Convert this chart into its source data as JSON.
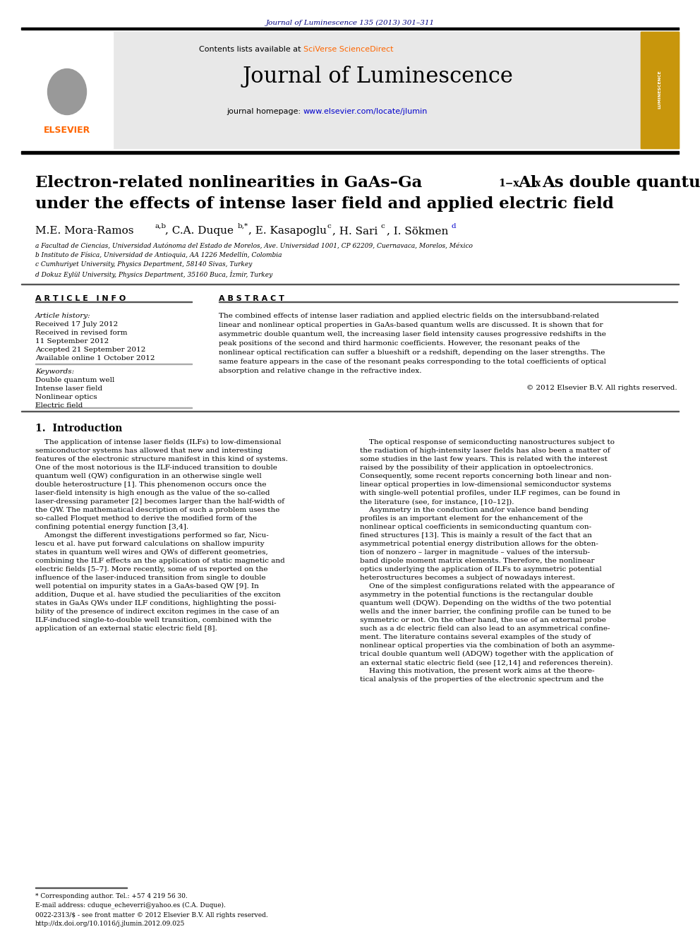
{
  "page_bg": "#ffffff",
  "top_journal_ref": "Journal of Luminescence 135 (2013) 301–311",
  "top_journal_ref_color": "#000080",
  "header_bg": "#e8e8e8",
  "journal_homepage_url": "www.elsevier.com/locate/jlumin",
  "journal_homepage_url_color": "#0000cc",
  "affil_a": "a Facultad de Ciencias, Universidad Autónoma del Estado de Morelos, Ave. Universidad 1001, CP 62209, Cuernavaca, Morelos, México",
  "affil_b": "b Instituto de Física, Universidad de Antioquia, AA 1226 Medellín, Colombia",
  "affil_c": "c Cumhuriyet University, Physics Department, 58140 Sivas, Turkey",
  "affil_d": "d Dokuz Eylül University, Physics Department, 35160 Buca, İzmir, Turkey",
  "article_info_header": "A R T I C L E   I N F O",
  "abstract_header": "A B S T R A C T",
  "article_history_label": "Article history:",
  "received_1": "Received 17 July 2012",
  "received_2": "Received in revised form",
  "received_2b": "11 September 2012",
  "accepted": "Accepted 21 September 2012",
  "available": "Available online 1 October 2012",
  "keywords_label": "Keywords:",
  "kw1": "Double quantum well",
  "kw2": "Intense laser field",
  "kw3": "Nonlinear optics",
  "kw4": "Electric field",
  "abstract_text": "The combined effects of intense laser radiation and applied electric fields on the intersubband-related\nlinear and nonlinear optical properties in GaAs-based quantum wells are discussed. It is shown that for\nasymmetric double quantum well, the increasing laser field intensity causes progressive redshifts in the\npeak positions of the second and third harmonic coefficients. However, the resonant peaks of the\nnonlinear optical rectification can suffer a blueshift or a redshift, depending on the laser strengths. The\nsame feature appears in the case of the resonant peaks corresponding to the total coefficients of optical\nabsorption and relative change in the refractive index.",
  "copyright": "© 2012 Elsevier B.V. All rights reserved.",
  "intro_header": "1.  Introduction",
  "intro_col1": "    The application of intense laser fields (ILFs) to low-dimensional\nsemiconductor systems has allowed that new and interesting\nfeatures of the electronic structure manifest in this kind of systems.\nOne of the most notorious is the ILF-induced transition to double\nquantum well (QW) configuration in an otherwise single well\ndouble heterostructure [1]. This phenomenon occurs once the\nlaser-field intensity is high enough as the value of the so-called\nlaser-dressing parameter [2] becomes larger than the half-width of\nthe QW. The mathematical description of such a problem uses the\nso-called Floquet method to derive the modified form of the\nconfining potential energy function [3,4].\n    Amongst the different investigations performed so far, Nicu-\nlescu et al. have put forward calculations on shallow impurity\nstates in quantum well wires and QWs of different geometries,\ncombining the ILF effects an the application of static magnetic and\nelectric fields [5–7]. More recently, some of us reported on the\ninfluence of the laser-induced transition from single to double\nwell potential on impurity states in a GaAs-based QW [9]. In\naddition, Duque et al. have studied the peculiarities of the exciton\nstates in GaAs QWs under ILF conditions, highlighting the possi-\nbility of the presence of indirect exciton regimes in the case of an\nILF-induced single-to-double well transition, combined with the\napplication of an external static electric field [8].",
  "intro_col2": "    The optical response of semiconducting nanostructures subject to\nthe radiation of high-intensity laser fields has also been a matter of\nsome studies in the last few years. This is related with the interest\nraised by the possibility of their application in optoelectronics.\nConsequently, some recent reports concerning both linear and non-\nlinear optical properties in low-dimensional semiconductor systems\nwith single-well potential profiles, under ILF regimes, can be found in\nthe literature (see, for instance, [10–12]).\n    Asymmetry in the conduction and/or valence band bending\nprofiles is an important element for the enhancement of the\nnonlinear optical coefficients in semiconducting quantum con-\nfined structures [13]. This is mainly a result of the fact that an\nasymmetrical potential energy distribution allows for the obten-\ntion of nonzero – larger in magnitude – values of the intersub-\nband dipole moment matrix elements. Therefore, the nonlinear\noptics underlying the application of ILFs to asymmetric potential\nheterostructures becomes a subject of nowadays interest.\n    One of the simplest configurations related with the appearance of\nasymmetry in the potential functions is the rectangular double\nquantum well (DQW). Depending on the widths of the two potential\nwells and the inner barrier, the confining profile can be tuned to be\nsymmetric or not. On the other hand, the use of an external probe\nsuch as a dc electric field can also lead to an asymmetrical confine-\nment. The literature contains several examples of the study of\nnonlinear optical properties via the combination of both an asymme-\ntrical double quantum well (ADQW) together with the application of\nan external static electric field (see [12,14] and references therein).\n    Having this motivation, the present work aims at the theore-\ntical analysis of the properties of the electronic spectrum and the",
  "footnote_star": "* Corresponding author. Tel.: +57 4 219 56 30.",
  "footnote_email": "E-mail address: cduque_echeverri@yahoo.es (C.A. Duque).",
  "footnote_issn": "0022-2313/$ - see front matter © 2012 Elsevier B.V. All rights reserved.",
  "footnote_doi": "http://dx.doi.org/10.1016/j.jlumin.2012.09.025"
}
